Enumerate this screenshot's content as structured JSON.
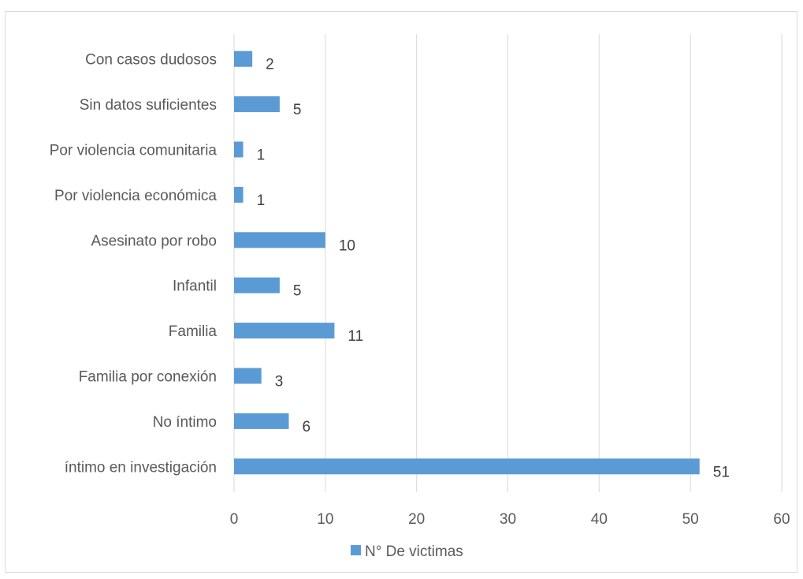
{
  "chart_data": {
    "type": "bar",
    "orientation": "horizontal",
    "categories": [
      "Con casos dudosos",
      "Sin datos  suficientes",
      "Por violencia comunitaria",
      "Por violencia económica",
      "Asesinato por robo",
      "Infantil",
      "Familia",
      "Familia por conexión",
      "No íntimo",
      "íntimo en investigación"
    ],
    "series": [
      {
        "name": "N° De victimas",
        "values": [
          2,
          5,
          1,
          1,
          10,
          5,
          11,
          3,
          6,
          51
        ],
        "color": "#5b9bd5"
      }
    ],
    "xlim": [
      0,
      60
    ],
    "xticks": [
      0,
      10,
      20,
      30,
      40,
      50,
      60
    ],
    "grid": "vertical",
    "legend_position": "bottom-center",
    "data_labels": true,
    "gridline_color": "#d9d9d9"
  }
}
